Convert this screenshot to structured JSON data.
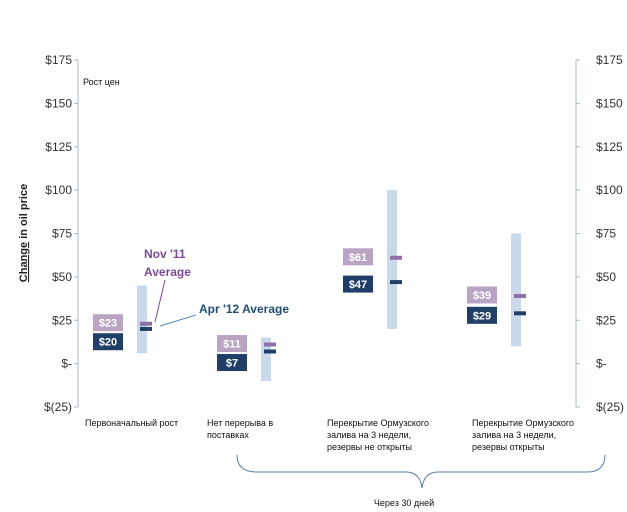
{
  "chart_data": {
    "type": "range-bar",
    "ylabel": "Change in oil price",
    "ylabel_underlined_word": "Change",
    "note": "Рост цен",
    "ylim": [
      -25,
      175
    ],
    "yticks": [
      {
        "value": 175,
        "label": "$175"
      },
      {
        "value": 150,
        "label": "$150"
      },
      {
        "value": 125,
        "label": "$125"
      },
      {
        "value": 100,
        "label": "$100"
      },
      {
        "value": 75,
        "label": "$75"
      },
      {
        "value": 50,
        "label": "$50"
      },
      {
        "value": 25,
        "label": "$25"
      },
      {
        "value": 0,
        "label": "$-"
      },
      {
        "value": -25,
        "label": "$(25)"
      }
    ],
    "categories": [
      {
        "lines": [
          "Первоначальный рост"
        ],
        "low": 6,
        "high": 45,
        "nov_value": 23,
        "nov_label": "$23",
        "apr_value": 20,
        "apr_label": "$20"
      },
      {
        "lines": [
          "Нет перерыва в",
          "поставках"
        ],
        "low": -10,
        "high": 15,
        "nov_value": 11,
        "nov_label": "$11",
        "apr_value": 7,
        "apr_label": "$7"
      },
      {
        "lines": [
          "Перекрытие Ормузского",
          "залива на 3 недели,",
          "резервы не открыты"
        ],
        "low": 20,
        "high": 100,
        "nov_value": 61,
        "nov_label": "$61",
        "apr_value": 47,
        "apr_label": "$47"
      },
      {
        "lines": [
          "Перекрытие Ормузского",
          "залива на 3 недели,",
          "резервы открыты"
        ],
        "low": 10,
        "high": 75,
        "nov_value": 39,
        "nov_label": "$39",
        "apr_value": 29,
        "apr_label": "$29"
      }
    ],
    "annotations": {
      "nov_line1": "Nov '11",
      "nov_line2": "Average",
      "apr": "Apr '12 Average"
    },
    "brace_label": "Через 30 дней",
    "colors": {
      "range": "#c9d9ec",
      "nov_badge": "#b9a4c4",
      "apr_badge": "#1f3f68",
      "nov_marker": "#8e6fa8",
      "apr_marker": "#1f3f68",
      "axis": "#aeb8c4",
      "text": "#111111"
    }
  }
}
